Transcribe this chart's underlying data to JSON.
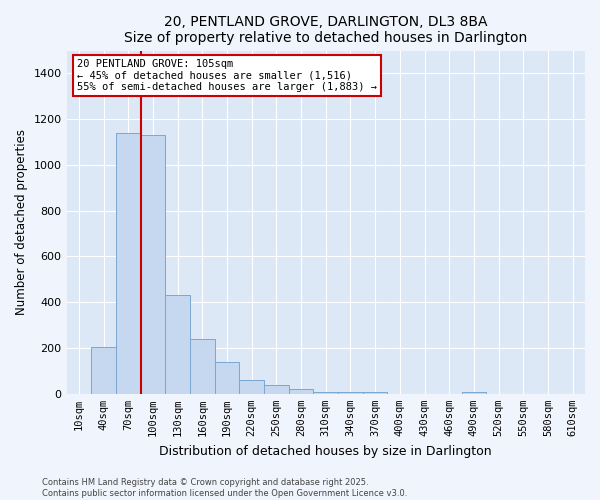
{
  "title": "20, PENTLAND GROVE, DARLINGTON, DL3 8BA",
  "subtitle": "Size of property relative to detached houses in Darlington",
  "xlabel": "Distribution of detached houses by size in Darlington",
  "ylabel": "Number of detached properties",
  "categories": [
    "10sqm",
    "40sqm",
    "70sqm",
    "100sqm",
    "130sqm",
    "160sqm",
    "190sqm",
    "220sqm",
    "250sqm",
    "280sqm",
    "310sqm",
    "340sqm",
    "370sqm",
    "400sqm",
    "430sqm",
    "460sqm",
    "490sqm",
    "520sqm",
    "550sqm",
    "580sqm",
    "610sqm"
  ],
  "values": [
    0,
    205,
    1140,
    1130,
    430,
    240,
    140,
    60,
    40,
    20,
    10,
    10,
    10,
    0,
    0,
    0,
    10,
    0,
    0,
    0,
    0
  ],
  "bar_color": "#c5d8f0",
  "bar_edge_color": "#7ba7d0",
  "bg_color": "#dce8f5",
  "grid_color": "#ffffff",
  "vline_index": 3,
  "vline_color": "#cc0000",
  "annotation_text": "20 PENTLAND GROVE: 105sqm\n← 45% of detached houses are smaller (1,516)\n55% of semi-detached houses are larger (1,883) →",
  "footnote1": "Contains HM Land Registry data © Crown copyright and database right 2025.",
  "footnote2": "Contains public sector information licensed under the Open Government Licence v3.0.",
  "ylim": [
    0,
    1500
  ],
  "yticks": [
    0,
    200,
    400,
    600,
    800,
    1000,
    1200,
    1400
  ],
  "fig_bg": "#f0f4fc"
}
